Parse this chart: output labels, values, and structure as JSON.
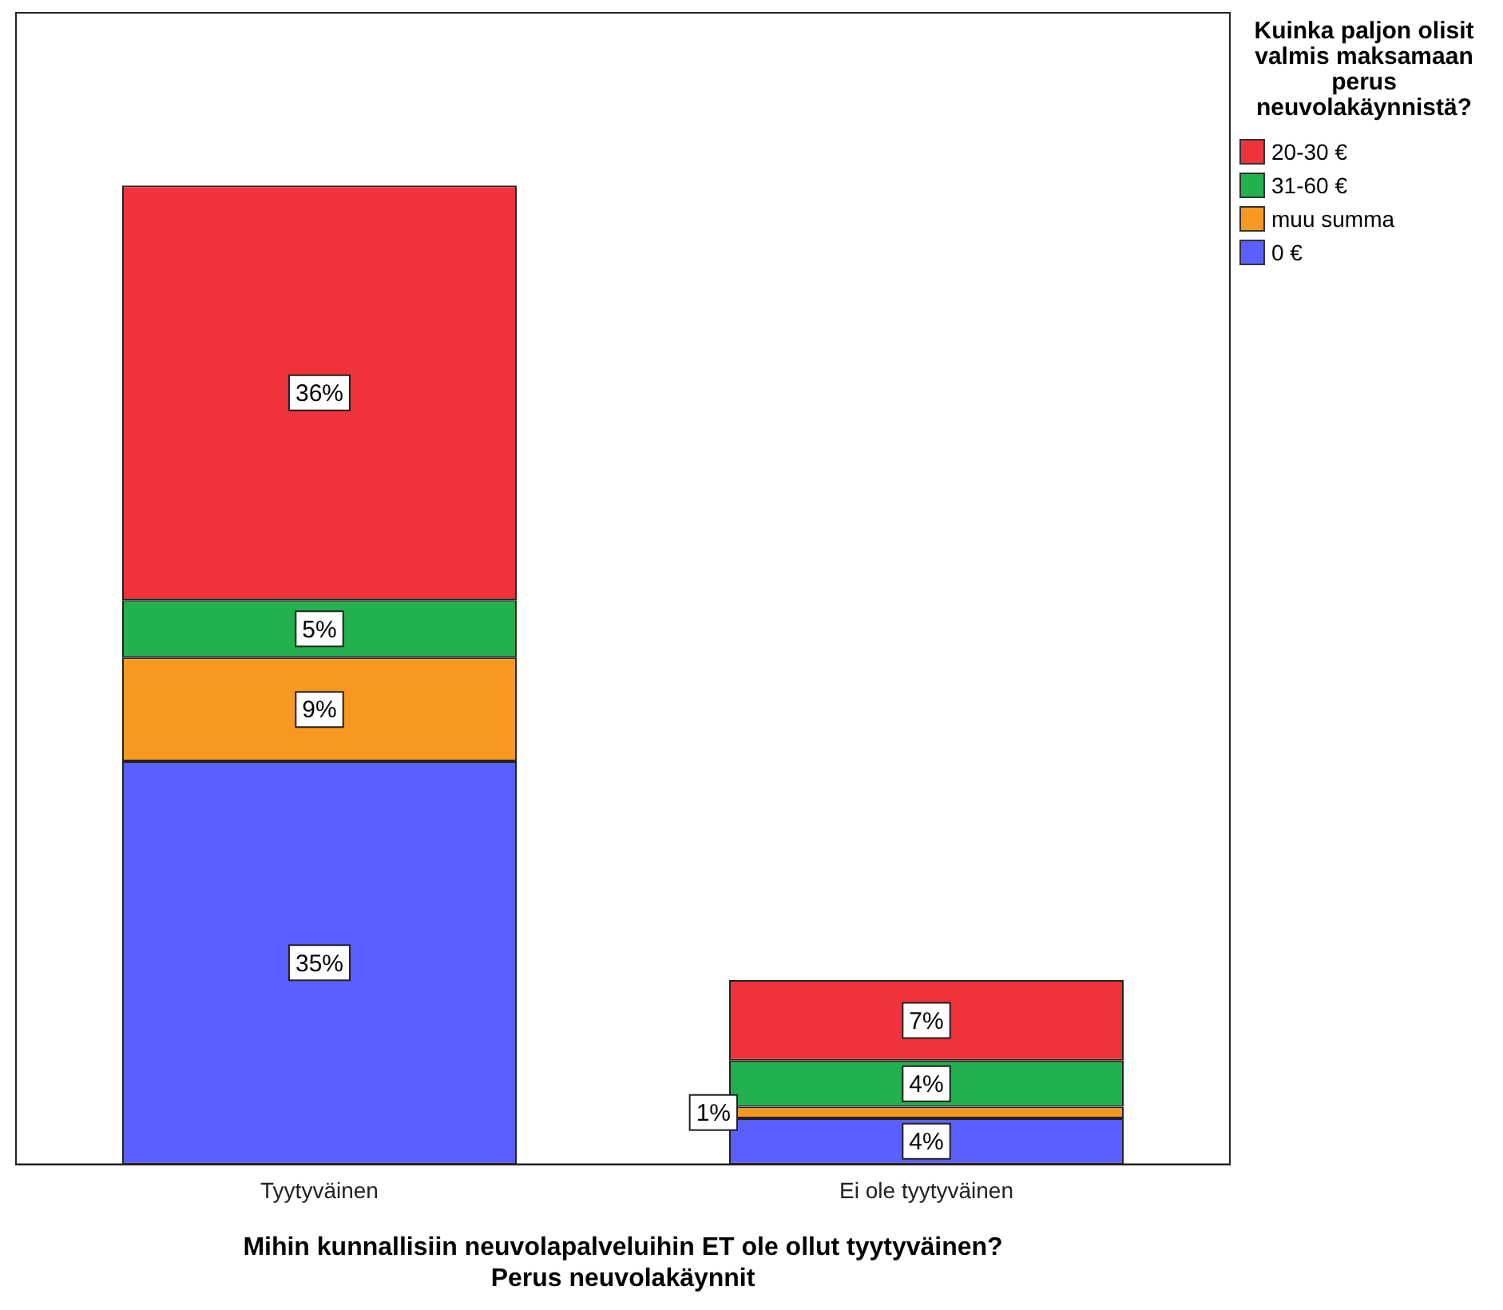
{
  "chart_data": {
    "type": "bar",
    "stacked": true,
    "xlabel": "Mihin kunnallisiin neuvolapalveluihin ET ole ollut tyytyväinen?\nPerus neuvolakäynnit",
    "legend_title": "Kuinka paljon olisit valmis maksamaan perus neuvolakäynnistä?",
    "legend": "top right",
    "tick_labels": "x",
    "grid": false,
    "ylim": [
      0,
      100
    ],
    "categories": [
      "Tyytyväinen",
      "Ei ole tyytyväinen"
    ],
    "series": [
      {
        "name": "0 €",
        "color": "#5a5ffe",
        "values": [
          35,
          4
        ],
        "value_labels": [
          "35%",
          "4%"
        ]
      },
      {
        "name": "muu summa",
        "color": "#f7991f",
        "values": [
          9,
          1
        ],
        "value_labels": [
          "9%",
          "1%"
        ]
      },
      {
        "name": "31-60 €",
        "color": "#22b14c",
        "values": [
          5,
          4
        ],
        "value_labels": [
          "5%",
          "4%"
        ]
      },
      {
        "name": "20-30 €",
        "color": "#f0333a",
        "values": [
          36,
          7
        ],
        "value_labels": [
          "36%",
          "7%"
        ]
      }
    ]
  }
}
